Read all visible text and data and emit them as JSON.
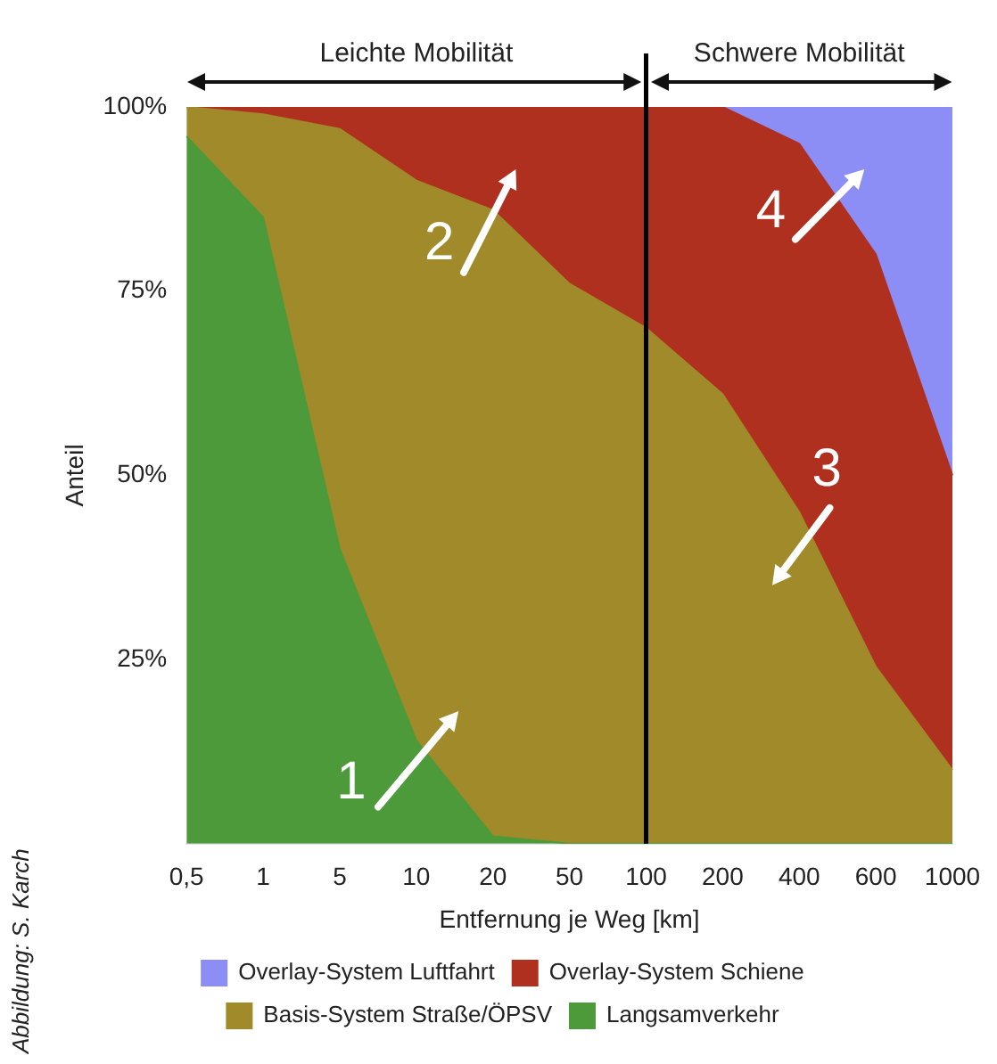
{
  "chart_data": {
    "type": "area",
    "stacked": true,
    "xlabel": "Entfernung je Weg [km]",
    "ylabel": "Anteil",
    "categories": [
      "0,5",
      "1",
      "5",
      "10",
      "20",
      "50",
      "100",
      "200",
      "400",
      "600",
      "1000"
    ],
    "series": [
      {
        "name": "Langsamverkehr",
        "color": "#4c9a3a",
        "values": [
          96,
          85,
          40,
          14,
          1,
          0,
          0,
          0,
          0,
          0,
          0
        ]
      },
      {
        "name": "Basis-System Straße/ÖPSV",
        "color": "#a08a2a",
        "values": [
          4,
          14,
          57,
          76,
          85,
          76,
          70,
          61,
          45,
          24,
          10
        ]
      },
      {
        "name": "Overlay-System Schiene",
        "color": "#b03020",
        "values": [
          0,
          1,
          3,
          10,
          14,
          24,
          30,
          39,
          50,
          56,
          40
        ]
      },
      {
        "name": "Overlay-System Luftfahrt",
        "color": "#8c8ef5",
        "values": [
          0,
          0,
          0,
          0,
          0,
          0,
          0,
          0,
          5,
          20,
          50
        ]
      }
    ],
    "ylim": [
      0,
      100
    ],
    "yticks": [
      {
        "value": 0,
        "label": null
      },
      {
        "value": 25,
        "label": "25%"
      },
      {
        "value": 50,
        "label": "50%"
      },
      {
        "value": 75,
        "label": "75%"
      },
      {
        "value": 100,
        "label": "100%"
      }
    ],
    "grid": false,
    "legend": "bottom",
    "ref_lines": [
      {
        "axis": "x",
        "value": "100",
        "color": "#000000"
      }
    ],
    "annotations": [
      "Leichte Mobilität",
      "Schwere Mobilität",
      "1",
      "2",
      "3",
      "4",
      "Abbildung: S. Karch"
    ]
  }
}
